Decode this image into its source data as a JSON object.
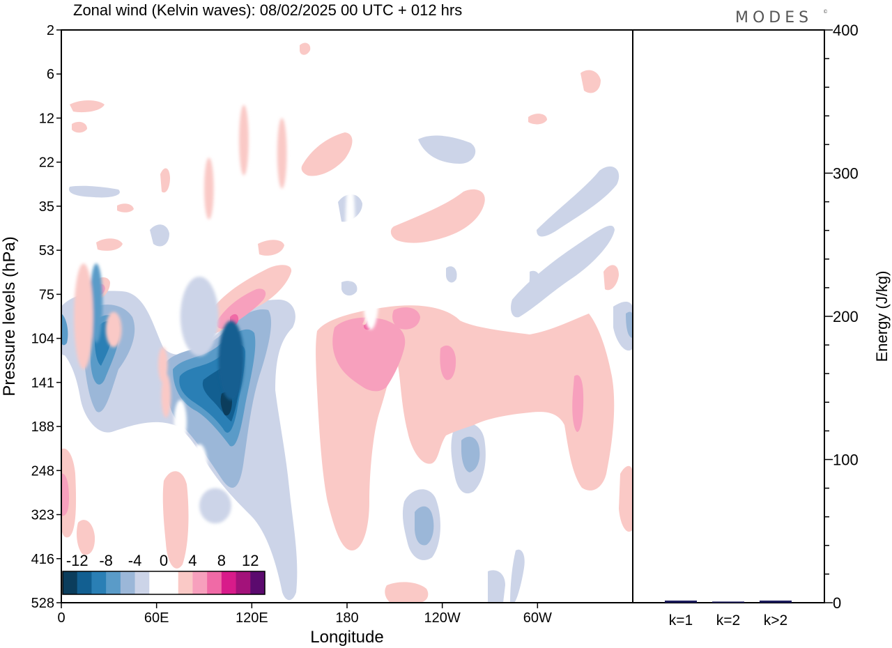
{
  "chart_data": [
    {
      "type": "heatmap",
      "title": "Zonal wind (Kelvin waves):  08/02/2025  00 UTC  + 012 hrs",
      "xlabel": "Longitude",
      "ylabel": "Pressure levels (hPa)",
      "x_ticks": [
        "0",
        "60E",
        "120E",
        "180",
        "120W",
        "60W"
      ],
      "x_tick_degrees": [
        0,
        60,
        120,
        180,
        240,
        300
      ],
      "x_range": [
        0,
        360
      ],
      "y_ticks": [
        "2",
        "6",
        "12",
        "22",
        "35",
        "53",
        "75",
        "104",
        "141",
        "188",
        "248",
        "323",
        "416",
        "528"
      ],
      "y_range": [
        2,
        528
      ],
      "colorbar": {
        "labels": [
          "-12",
          "-8",
          "-4",
          "0",
          "4",
          "8",
          "12"
        ],
        "colors": [
          "#0b3d5c",
          "#125f91",
          "#2a7fb5",
          "#5a9bc8",
          "#9bb7d8",
          "#ccd4e8",
          "#ffffff",
          "#ffffff",
          "#fac9c6",
          "#f7a0bd",
          "#f06aa6",
          "#d81b8a",
          "#a3127a",
          "#5b0a6e"
        ]
      },
      "blobs": [
        {
          "lon": 107,
          "lev": 7.5,
          "rx": 8,
          "ry": 0.9,
          "v": -11
        },
        {
          "lon": 22,
          "lev": 6.2,
          "rx": 4,
          "ry": 0.9,
          "v": -7
        },
        {
          "lon": 87,
          "lev": 6.5,
          "rx": 12,
          "ry": 0.9,
          "v": -3
        },
        {
          "lon": 97,
          "lev": 10.8,
          "rx": 10,
          "ry": 0.4,
          "v": -3
        },
        {
          "lon": 87,
          "lev": 9.9,
          "rx": 5,
          "ry": 0.5,
          "v": -2
        },
        {
          "lon": 182,
          "lev": 4.5,
          "rx": 3,
          "ry": 1.2,
          "v": -2
        },
        {
          "lon": 195,
          "lev": 6.0,
          "rx": 5,
          "ry": 0.8,
          "v": -2
        },
        {
          "lon": 75,
          "lev": 8.9,
          "rx": 4,
          "ry": 0.5,
          "v": -2
        },
        {
          "lon": 14,
          "lev": 6.5,
          "rx": 6,
          "ry": 1.2,
          "v": 2
        },
        {
          "lon": 33,
          "lev": 6.8,
          "rx": 5,
          "ry": 0.4,
          "v": 3
        },
        {
          "lon": 66,
          "lev": 8.3,
          "rx": 3,
          "ry": 0.5,
          "v": 2
        },
        {
          "lon": 64,
          "lev": 7.6,
          "rx": 3,
          "ry": 0.4,
          "v": 2
        },
        {
          "lon": 115,
          "lev": 2.5,
          "rx": 3,
          "ry": 0.8,
          "v": 3
        },
        {
          "lon": 93,
          "lev": 3.6,
          "rx": 3,
          "ry": 0.7,
          "v": 2
        },
        {
          "lon": 139,
          "lev": 2.8,
          "rx": 3,
          "ry": 0.8,
          "v": 2
        }
      ],
      "bars": [
        {
          "label": "k=1",
          "value": 1.5
        },
        {
          "label": "k=2",
          "value": 0.8
        },
        {
          "label": "k>2",
          "value": 1.5
        }
      ],
      "bar_ylabel": "Energy (J/kg)",
      "bar_ylim": [
        0,
        400
      ],
      "bar_ticks": [
        "0",
        "100",
        "200",
        "300",
        "400"
      ],
      "bar_color": "#1a1a5a"
    }
  ],
  "logo_text": "MODES",
  "logo_mark": "©"
}
